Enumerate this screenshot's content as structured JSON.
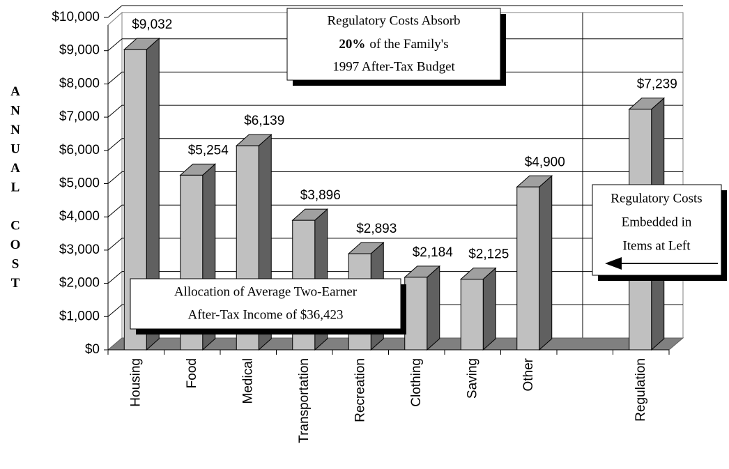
{
  "chart_data": {
    "type": "bar3d",
    "y_axis_label": "ANNUAL COST",
    "categories": [
      "Housing",
      "Food",
      "Medical",
      "Transportation",
      "Recreation",
      "Clothing",
      "Saving",
      "Other",
      null,
      "Regulation"
    ],
    "values": [
      9032,
      5254,
      6139,
      3896,
      2893,
      2184,
      2125,
      4900,
      null,
      7239
    ],
    "value_labels": [
      "$9,032",
      "$5,254",
      "$6,139",
      "$3,896",
      "$2,893",
      "$2,184",
      "$2,125",
      "$4,900",
      null,
      "$7,239"
    ],
    "colors": {
      "front": "#c0c0c0",
      "side": "#606060",
      "top": "#a0a0a0",
      "floor": "#808080"
    },
    "ylim": [
      0,
      10000
    ],
    "yticks": [
      {
        "value": 0,
        "label": "$0"
      },
      {
        "value": 1000,
        "label": "$1,000"
      },
      {
        "value": 2000,
        "label": "$2,000"
      },
      {
        "value": 3000,
        "label": "$3,000"
      },
      {
        "value": 4000,
        "label": "$4,000"
      },
      {
        "value": 5000,
        "label": "$5,000"
      },
      {
        "value": 6000,
        "label": "$6,000"
      },
      {
        "value": 7000,
        "label": "$7,000"
      },
      {
        "value": 8000,
        "label": "$8,000"
      },
      {
        "value": 9000,
        "label": "$9,000"
      },
      {
        "value": 10000,
        "label": "$10,000"
      }
    ],
    "grid": true,
    "annotations": {
      "budget": {
        "line1": "Regulatory Costs Absorb",
        "bold": "20%",
        "line2_rest": "of the Family's",
        "line3": "1997 After-Tax Budget"
      },
      "embedded": [
        "Regulatory Costs",
        "Embedded in",
        "Items at Left"
      ],
      "allocation": [
        "Allocation of Average Two-Earner",
        "After-Tax Income of $36,423"
      ]
    }
  }
}
